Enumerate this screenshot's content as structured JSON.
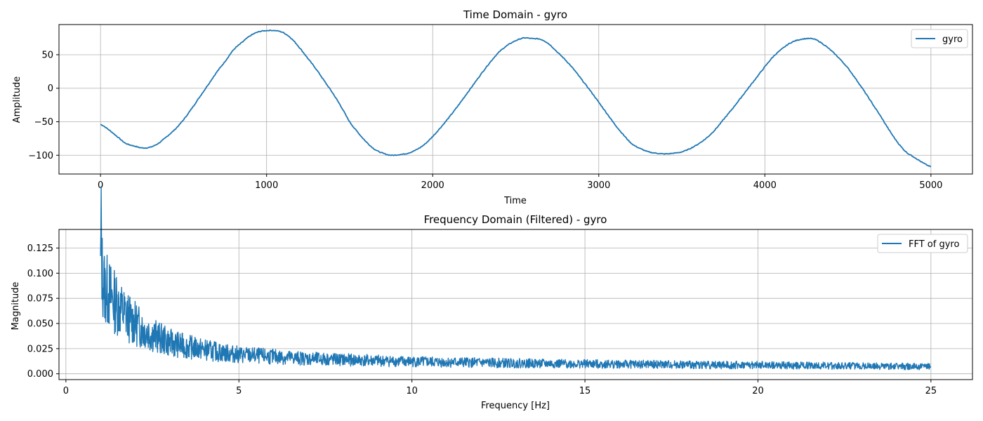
{
  "chart_data": [
    {
      "type": "line",
      "title": "Time Domain - gyro",
      "xlabel": "Time",
      "ylabel": "Amplitude",
      "xlim": [
        -250,
        5250
      ],
      "ylim": [
        -128,
        95
      ],
      "xticks": [
        0,
        1000,
        2000,
        3000,
        4000,
        5000
      ],
      "yticks": [
        -100,
        -50,
        0,
        50
      ],
      "grid": true,
      "legend": "top-right",
      "series": [
        {
          "name": "gyro",
          "color": "#1f77b4",
          "x": [
            0,
            50,
            100,
            150,
            200,
            250,
            300,
            350,
            400,
            450,
            500,
            550,
            600,
            650,
            700,
            750,
            800,
            850,
            900,
            950,
            1000,
            1050,
            1100,
            1150,
            1200,
            1250,
            1300,
            1350,
            1400,
            1450,
            1500,
            1550,
            1600,
            1650,
            1700,
            1750,
            1800,
            1850,
            1900,
            1950,
            2000,
            2050,
            2100,
            2150,
            2200,
            2250,
            2300,
            2350,
            2400,
            2450,
            2500,
            2550,
            2600,
            2650,
            2700,
            2750,
            2800,
            2850,
            2900,
            2950,
            3000,
            3050,
            3100,
            3150,
            3200,
            3250,
            3300,
            3350,
            3400,
            3450,
            3500,
            3550,
            3600,
            3650,
            3700,
            3750,
            3800,
            3850,
            3900,
            3950,
            4000,
            4050,
            4100,
            4150,
            4200,
            4250,
            4300,
            4350,
            4400,
            4450,
            4500,
            4550,
            4600,
            4650,
            4700,
            4750,
            4800,
            4850,
            4900,
            4950,
            5000
          ],
          "y": [
            -54,
            -62,
            -72,
            -82,
            -86,
            -89,
            -88,
            -82,
            -72,
            -61,
            -47,
            -30,
            -12,
            6,
            24,
            40,
            57,
            68,
            78,
            84,
            86,
            86,
            83,
            74,
            60,
            44,
            28,
            10,
            -8,
            -28,
            -50,
            -66,
            -80,
            -91,
            -97,
            -100,
            -99,
            -97,
            -92,
            -84,
            -72,
            -58,
            -43,
            -27,
            -10,
            7,
            24,
            40,
            54,
            64,
            71,
            75,
            74,
            73,
            66,
            54,
            42,
            28,
            12,
            -4,
            -21,
            -38,
            -55,
            -70,
            -83,
            -90,
            -95,
            -97,
            -98,
            -97,
            -95,
            -90,
            -83,
            -74,
            -62,
            -47,
            -32,
            -16,
            0,
            16,
            32,
            47,
            58,
            67,
            72,
            74,
            73,
            66,
            56,
            44,
            30,
            13,
            -5,
            -24,
            -43,
            -63,
            -81,
            -95,
            -103,
            -111,
            -117
          ]
        }
      ]
    },
    {
      "type": "line",
      "title": "Frequency Domain (Filtered) - gyro",
      "xlabel": "Frequency [Hz]",
      "ylabel": "Magnitude",
      "xlim": [
        -0.2,
        26.2
      ],
      "ylim": [
        -0.0058,
        0.1435
      ],
      "xticks": [
        0,
        5,
        10,
        15,
        20,
        25
      ],
      "yticks": [
        0.0,
        0.025,
        0.05,
        0.075,
        0.1,
        0.125
      ],
      "ytick_labels": [
        "0.000",
        "0.025",
        "0.050",
        "0.075",
        "0.100",
        "0.125"
      ],
      "grid": true,
      "legend": "top-right",
      "series": [
        {
          "name": "FFT of gyro",
          "color": "#1f77b4",
          "x": [
            1.0,
            1.02,
            1.05,
            1.1,
            1.2,
            1.3,
            1.4,
            1.5,
            1.6,
            1.8,
            2.0,
            2.2,
            2.5,
            2.8,
            3.0,
            3.5,
            4.0,
            4.5,
            5.0,
            6.0,
            7.0,
            8.0,
            9.0,
            10.0,
            12.0,
            14.0,
            16.0,
            18.0,
            20.0,
            22.0,
            24.0,
            25.0
          ],
          "y": [
            0.097,
            0.138,
            0.1,
            0.088,
            0.082,
            0.077,
            0.072,
            0.068,
            0.063,
            0.056,
            0.05,
            0.045,
            0.039,
            0.034,
            0.031,
            0.027,
            0.024,
            0.021,
            0.019,
            0.017,
            0.015,
            0.014,
            0.013,
            0.012,
            0.011,
            0.01,
            0.0095,
            0.009,
            0.0085,
            0.008,
            0.0075,
            0.007
          ]
        }
      ]
    }
  ]
}
